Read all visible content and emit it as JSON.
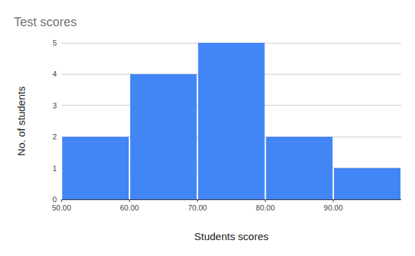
{
  "chart_data": {
    "type": "histogram",
    "title": "Test scores",
    "x_label": "Students scores",
    "y_label": "No. of students",
    "bins": [
      50,
      60,
      70,
      80,
      90,
      100
    ],
    "values": [
      2,
      4,
      5,
      2,
      1
    ],
    "color": "#4285f4",
    "xlim": [
      50,
      100
    ],
    "xticks": [
      {
        "value": 50,
        "label": "50.00"
      },
      {
        "value": 60,
        "label": "60.00"
      },
      {
        "value": 70,
        "label": "70.00"
      },
      {
        "value": 80,
        "label": "80.00"
      },
      {
        "value": 90,
        "label": "90.00"
      }
    ],
    "ylim": [
      0,
      5
    ],
    "yticks": [
      0,
      1,
      2,
      3,
      4,
      5
    ],
    "grid": true
  }
}
